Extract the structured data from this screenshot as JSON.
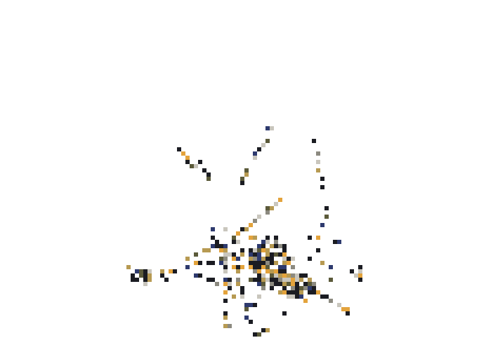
{
  "image": {
    "description_icon": "pixelated-scatter-artwork",
    "background_color": "#ffffff",
    "palette": {
      "dark": "#1b1c22",
      "navy": "#2e3a6e",
      "olive": "#5b5a3a",
      "gray": "#8c8a80",
      "tan": "#b79a52",
      "orange": "#e3a33c",
      "light": "#c9c6bd"
    }
  }
}
